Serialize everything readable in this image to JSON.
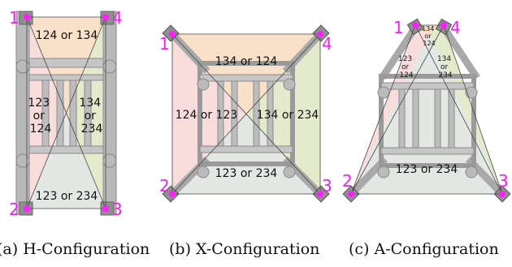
{
  "colors": {
    "top": "#f7d6b5",
    "left": "#f7d2d2",
    "right": "#dde6bf",
    "bottom": "#dfe4df",
    "frame": "#a9a9a9",
    "frame_dark": "#777777",
    "marker": "#ff1fff",
    "label": "#f01ff0"
  },
  "panels": [
    {
      "config": "H",
      "caption": "(a) H-Configuration",
      "regions": {
        "top": "124 or 134",
        "left": [
          "123",
          "or",
          "124"
        ],
        "right": [
          "134",
          "or",
          "234"
        ],
        "bottom": "123 or 234"
      },
      "corners": [
        "1",
        "2",
        "3",
        "4"
      ]
    },
    {
      "config": "X",
      "caption": "(b) X-Configuration",
      "regions": {
        "top": "134 or 124",
        "left": "124 or 123",
        "right": "134 or 234",
        "bottom": "123 or 234"
      },
      "corners": [
        "1",
        "2",
        "3",
        "4"
      ]
    },
    {
      "config": "A",
      "caption": "(c) A-Configuration",
      "regions": {
        "top": [
          "134",
          "or",
          "124"
        ],
        "left": [
          "123",
          "or",
          "124"
        ],
        "right": [
          "134",
          "or",
          "234"
        ],
        "bottom": "123 or 234"
      },
      "corners": [
        "1",
        "2",
        "3",
        "4"
      ]
    }
  ]
}
